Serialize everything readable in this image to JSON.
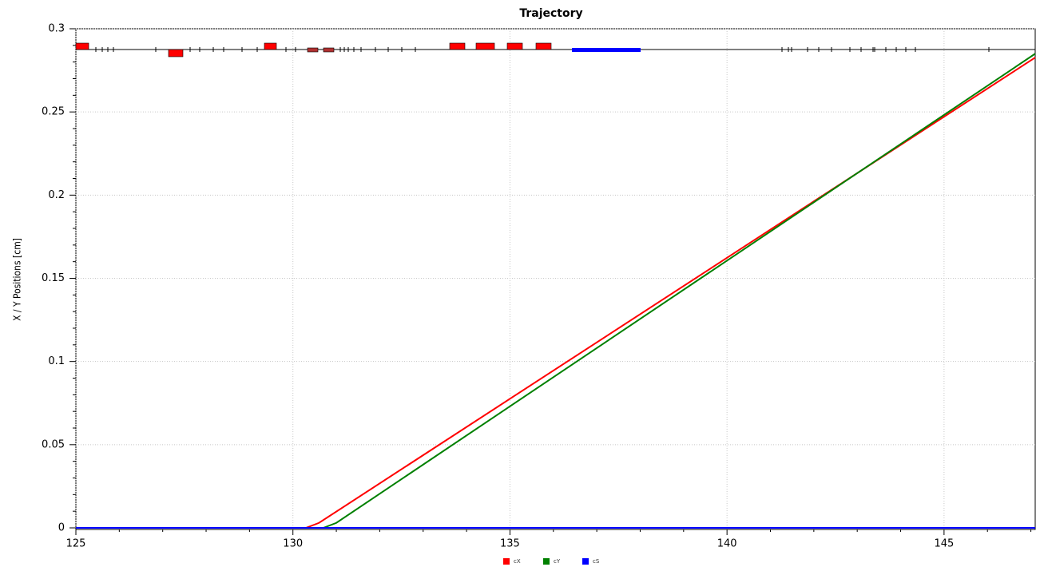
{
  "chart_data": {
    "type": "line",
    "title": "Trajectory",
    "y_label": "X / Y Positions [cm]",
    "xlim": [
      125,
      147.1
    ],
    "ylim": [
      0,
      0.3
    ],
    "xticks": [
      125,
      130,
      135,
      140,
      145
    ],
    "yticks": [
      0,
      0.05,
      0.1,
      0.15,
      0.2,
      0.25,
      0.3
    ],
    "grid": true,
    "legend": "bottom",
    "series": [
      {
        "name": "cX",
        "color": "#ff0000",
        "x": [
          125,
          130.3,
          130.6,
          147.1
        ],
        "values": [
          0,
          0,
          0.003,
          0.2827
        ]
      },
      {
        "name": "cY",
        "color": "#008000",
        "x": [
          125,
          130.7,
          131.0,
          147.1
        ],
        "values": [
          0,
          0,
          0.003,
          0.285
        ]
      },
      {
        "name": "cS",
        "color": "#0000ff",
        "x": [
          125,
          147.1
        ],
        "values": [
          0,
          0
        ]
      }
    ]
  }
}
